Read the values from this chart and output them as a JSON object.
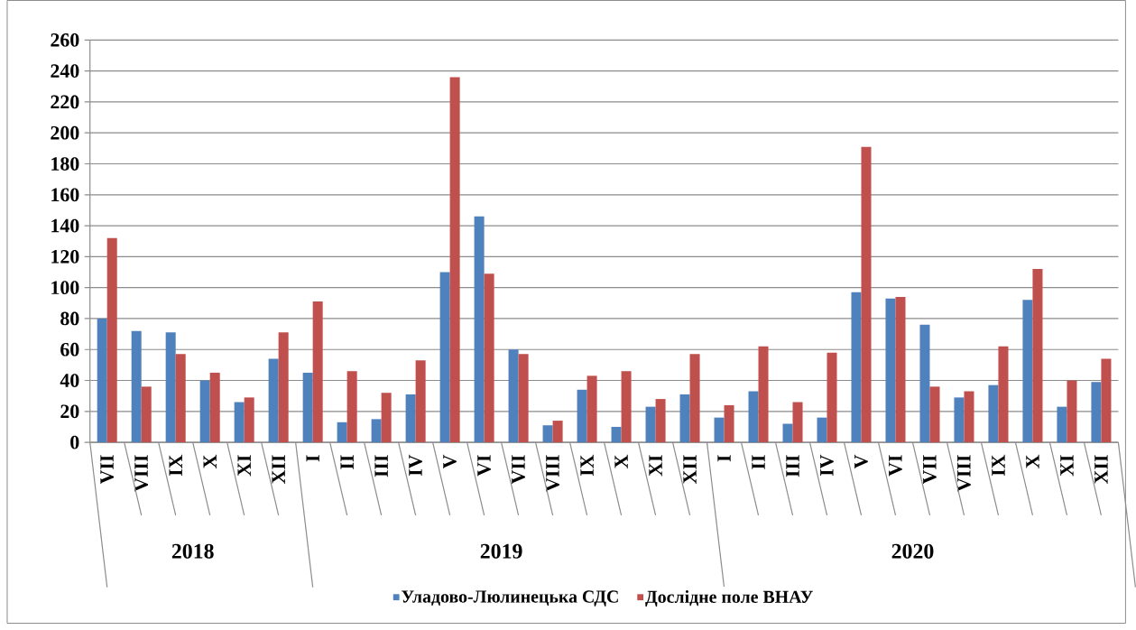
{
  "chart_data": {
    "type": "bar",
    "categories": [
      "VII",
      "VIII",
      "IX",
      "X",
      "XI",
      "XII",
      "I",
      "II",
      "III",
      "IV",
      "V",
      "VI",
      "VII",
      "VIII",
      "IX",
      "X",
      "XI",
      "XII",
      "I",
      "II",
      "III",
      "IV",
      "V",
      "VI",
      "VII",
      "VIII",
      "IX",
      "X",
      "XI",
      "XII"
    ],
    "series": [
      {
        "name": "Уладово-Люлинецька СДС",
        "color": "#4f81bd",
        "values": [
          80,
          72,
          71,
          40,
          26,
          54,
          45,
          13,
          15,
          31,
          110,
          146,
          60,
          11,
          34,
          10,
          23,
          31,
          16,
          33,
          12,
          16,
          97,
          93,
          76,
          29,
          37,
          92,
          23,
          39
        ]
      },
      {
        "name": "Дослідне поле ВНАУ",
        "color": "#c0504d",
        "values": [
          132,
          36,
          57,
          45,
          29,
          71,
          91,
          46,
          32,
          53,
          236,
          109,
          57,
          14,
          43,
          46,
          28,
          57,
          24,
          62,
          26,
          58,
          191,
          94,
          36,
          33,
          62,
          112,
          40,
          54
        ]
      }
    ],
    "annotations": [
      "2018",
      "2019",
      "2020"
    ],
    "ylim": [
      0,
      260
    ],
    "yticks": [
      0,
      20,
      40,
      60,
      80,
      100,
      120,
      140,
      160,
      180,
      200,
      220,
      240,
      260
    ],
    "grid": "y",
    "legend": "bottom"
  }
}
